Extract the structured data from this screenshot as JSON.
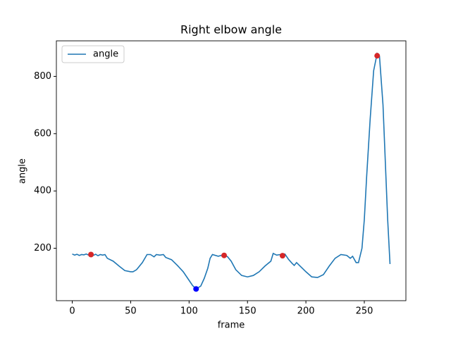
{
  "chart_data": {
    "type": "line",
    "title": "Right elbow angle",
    "xlabel": "frame",
    "ylabel": "angle",
    "series": [
      {
        "name": "angle",
        "color": "#1f77b4",
        "x": [
          0,
          2,
          4,
          6,
          8,
          10,
          12,
          14,
          16,
          18,
          20,
          22,
          24,
          26,
          28,
          30,
          35,
          40,
          45,
          50,
          52,
          55,
          60,
          64,
          67,
          70,
          72,
          75,
          78,
          80,
          85,
          90,
          95,
          100,
          103,
          106,
          110,
          113,
          116,
          118,
          120,
          125,
          130,
          133,
          136,
          140,
          145,
          150,
          155,
          160,
          165,
          170,
          172,
          175,
          178,
          182,
          185,
          188,
          190,
          192,
          195,
          200,
          205,
          210,
          215,
          220,
          225,
          230,
          235,
          238,
          240,
          243,
          245,
          248,
          250,
          252,
          255,
          258,
          261,
          263,
          266,
          268,
          270,
          272
        ],
        "values": [
          180,
          176,
          179,
          175,
          178,
          177,
          180,
          176,
          178,
          175,
          179,
          174,
          178,
          176,
          178,
          165,
          155,
          138,
          122,
          118,
          118,
          125,
          150,
          178,
          178,
          170,
          178,
          176,
          178,
          168,
          160,
          140,
          118,
          88,
          70,
          58,
          68,
          95,
          130,
          165,
          178,
          172,
          178,
          170,
          155,
          125,
          105,
          100,
          105,
          118,
          138,
          155,
          182,
          176,
          178,
          180,
          162,
          148,
          140,
          150,
          138,
          118,
          100,
          98,
          108,
          138,
          165,
          178,
          175,
          165,
          172,
          150,
          150,
          200,
          300,
          450,
          650,
          820,
          880,
          870,
          700,
          500,
          300,
          145
        ]
      }
    ],
    "markers": [
      {
        "color": "#d62728",
        "x": [
          16,
          130,
          180,
          261
        ],
        "values": [
          178,
          175,
          174,
          872
        ]
      },
      {
        "color": "#0000ff",
        "x": [
          106
        ],
        "values": [
          58
        ]
      }
    ],
    "xlim": [
      -13.6,
      285.6
    ],
    "ylim": [
      17,
      924
    ],
    "xticks": [
      0,
      50,
      100,
      150,
      200,
      250
    ],
    "yticks": [
      200,
      400,
      600,
      800
    ],
    "legend": "upper left"
  }
}
